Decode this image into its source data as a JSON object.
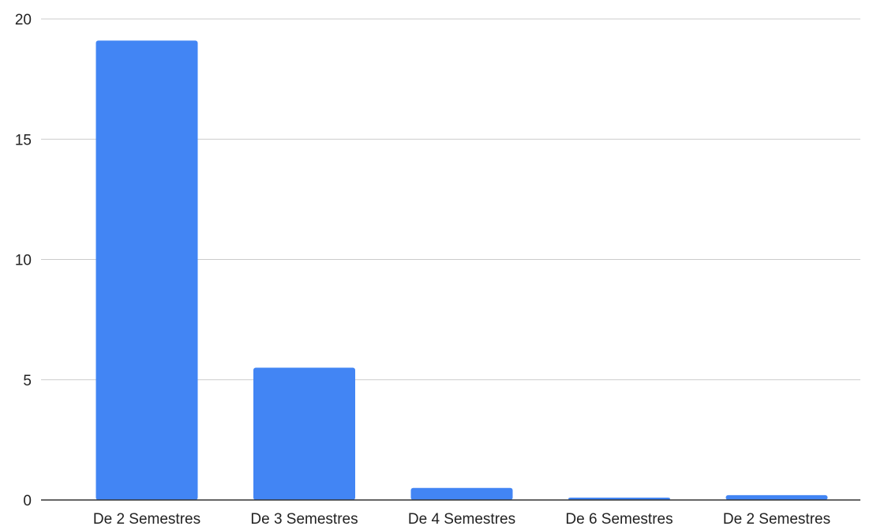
{
  "chart_data": {
    "type": "bar",
    "categories": [
      "De 2 Semestres",
      "De 3 Semestres",
      "De 4 Semestres",
      "De 6 Semestres",
      "De 2 Semestres"
    ],
    "values": [
      19.1,
      5.5,
      0.5,
      0.1,
      0.2
    ],
    "title": "",
    "xlabel": "",
    "ylabel": "",
    "ylim": [
      0,
      20
    ],
    "yticks": [
      0,
      5,
      10,
      15,
      20
    ],
    "grid": true,
    "legend": "none",
    "bar_color": "#4285f4",
    "grid_color": "#cccccc",
    "axis_color": "#333333"
  }
}
